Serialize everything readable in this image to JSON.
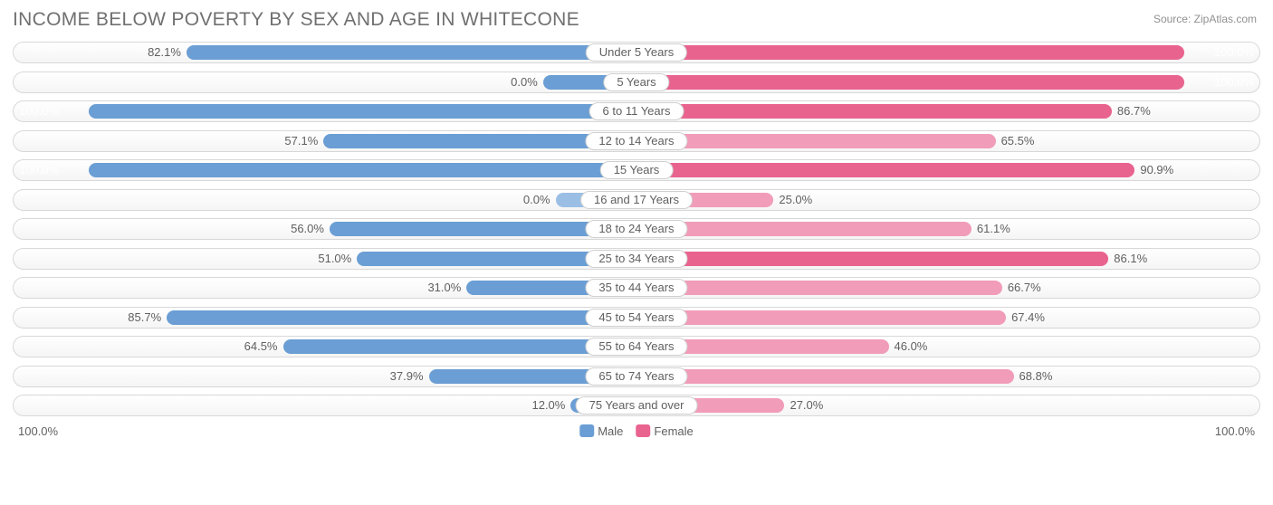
{
  "title": "INCOME BELOW POVERTY BY SEX AND AGE IN WHITECONE",
  "source": "Source: ZipAtlas.com",
  "chart": {
    "type": "diverging-bar",
    "male_color": "#6a9ed4",
    "male_color_light": "#9bbfe4",
    "female_color": "#e9638f",
    "female_color_light": "#f19cb9",
    "row_border_color": "#d8d8d8",
    "background_color": "#ffffff",
    "label_fontsize": 13,
    "title_fontsize": 21,
    "title_color": "#707070",
    "text_color": "#606060",
    "axis_max_label": "100.0%",
    "max_value": 100.0,
    "center_gap_pct": 12,
    "legend": {
      "male": "Male",
      "female": "Female"
    },
    "rows": [
      {
        "category": "Under 5 Years",
        "male": 82.1,
        "male_label": "82.1%",
        "female": 100.0,
        "female_label": "100.0%"
      },
      {
        "category": "5 Years",
        "male": 0.0,
        "male_label": "0.0%",
        "female": 100.0,
        "female_label": "100.0%",
        "male_stub": 15
      },
      {
        "category": "6 to 11 Years",
        "male": 100.0,
        "male_label": "100.0%",
        "female": 86.7,
        "female_label": "86.7%"
      },
      {
        "category": "12 to 14 Years",
        "male": 57.1,
        "male_label": "57.1%",
        "female": 65.5,
        "female_label": "65.5%",
        "female_light": true
      },
      {
        "category": "15 Years",
        "male": 100.0,
        "male_label": "100.0%",
        "female": 90.9,
        "female_label": "90.9%"
      },
      {
        "category": "16 and 17 Years",
        "male": 0.0,
        "male_label": "0.0%",
        "female": 25.0,
        "female_label": "25.0%",
        "male_stub": 13,
        "male_light": true,
        "female_light": true
      },
      {
        "category": "18 to 24 Years",
        "male": 56.0,
        "male_label": "56.0%",
        "female": 61.1,
        "female_label": "61.1%",
        "female_light": true
      },
      {
        "category": "25 to 34 Years",
        "male": 51.0,
        "male_label": "51.0%",
        "female": 86.1,
        "female_label": "86.1%"
      },
      {
        "category": "35 to 44 Years",
        "male": 31.0,
        "male_label": "31.0%",
        "female": 66.7,
        "female_label": "66.7%",
        "female_light": true
      },
      {
        "category": "45 to 54 Years",
        "male": 85.7,
        "male_label": "85.7%",
        "female": 67.4,
        "female_label": "67.4%",
        "female_light": true
      },
      {
        "category": "55 to 64 Years",
        "male": 64.5,
        "male_label": "64.5%",
        "female": 46.0,
        "female_label": "46.0%",
        "female_light": true
      },
      {
        "category": "65 to 74 Years",
        "male": 37.9,
        "male_label": "37.9%",
        "female": 68.8,
        "female_label": "68.8%",
        "female_light": true
      },
      {
        "category": "75 Years and over",
        "male": 12.0,
        "male_label": "12.0%",
        "female": 27.0,
        "female_label": "27.0%",
        "female_light": true
      }
    ]
  }
}
